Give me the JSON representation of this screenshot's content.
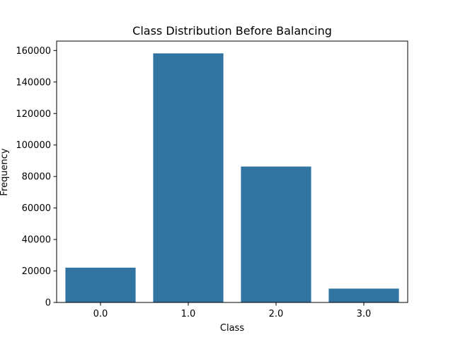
{
  "chart_data": {
    "type": "bar",
    "title": "Class Distribution Before Balancing",
    "xlabel": "Class",
    "ylabel": "Frequency",
    "categories": [
      "0.0",
      "1.0",
      "2.0",
      "3.0"
    ],
    "values": [
      22100,
      158200,
      86300,
      8800
    ],
    "ylim": [
      0,
      166000
    ],
    "yticks": [
      0,
      20000,
      40000,
      60000,
      80000,
      100000,
      120000,
      140000,
      160000
    ],
    "bar_color": "#3274a1",
    "grid": false,
    "legend": "none"
  }
}
